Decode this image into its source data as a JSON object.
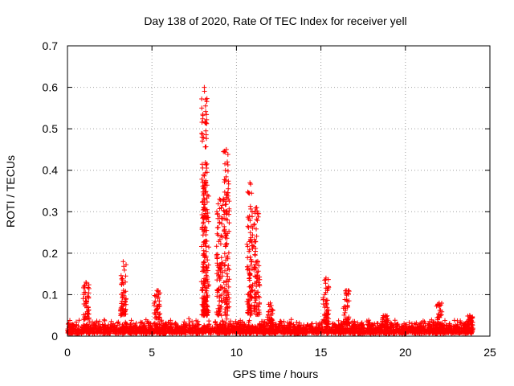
{
  "chart_data": {
    "type": "scatter",
    "title": "Day 138 of 2020, Rate Of TEC Index for receiver yell",
    "xlabel": "GPS time / hours",
    "ylabel": "ROTI / TECUs",
    "xlim": [
      0,
      25
    ],
    "ylim": [
      0,
      0.7
    ],
    "xticks": [
      "0",
      "5",
      "10",
      "15",
      "20",
      "25"
    ],
    "yticks": [
      "0",
      "0.1",
      "0.2",
      "0.3",
      "0.4",
      "0.5",
      "0.6",
      "0.7"
    ],
    "grid": true,
    "marker": "+",
    "color": "#ff0000",
    "baseline_range": [
      0,
      24
    ],
    "baseline_level": 0.02,
    "features": [
      {
        "x": 1.1,
        "y_min": 0.04,
        "y_max": 0.13
      },
      {
        "x": 3.3,
        "y_min": 0.05,
        "y_max": 0.18
      },
      {
        "x": 5.3,
        "y_min": 0.04,
        "y_max": 0.11
      },
      {
        "x": 8.1,
        "y_min": 0.05,
        "y_max": 0.6
      },
      {
        "x": 8.2,
        "y_min": 0.05,
        "y_max": 0.37
      },
      {
        "x": 9.0,
        "y_min": 0.05,
        "y_max": 0.33
      },
      {
        "x": 9.4,
        "y_min": 0.05,
        "y_max": 0.45
      },
      {
        "x": 10.8,
        "y_min": 0.05,
        "y_max": 0.37
      },
      {
        "x": 11.2,
        "y_min": 0.05,
        "y_max": 0.31
      },
      {
        "x": 12.0,
        "y_min": 0.03,
        "y_max": 0.08
      },
      {
        "x": 15.3,
        "y_min": 0.03,
        "y_max": 0.14
      },
      {
        "x": 16.5,
        "y_min": 0.03,
        "y_max": 0.11
      },
      {
        "x": 18.8,
        "y_min": 0.02,
        "y_max": 0.05
      },
      {
        "x": 22.0,
        "y_min": 0.02,
        "y_max": 0.08
      },
      {
        "x": 23.8,
        "y_min": 0.02,
        "y_max": 0.05
      }
    ]
  }
}
